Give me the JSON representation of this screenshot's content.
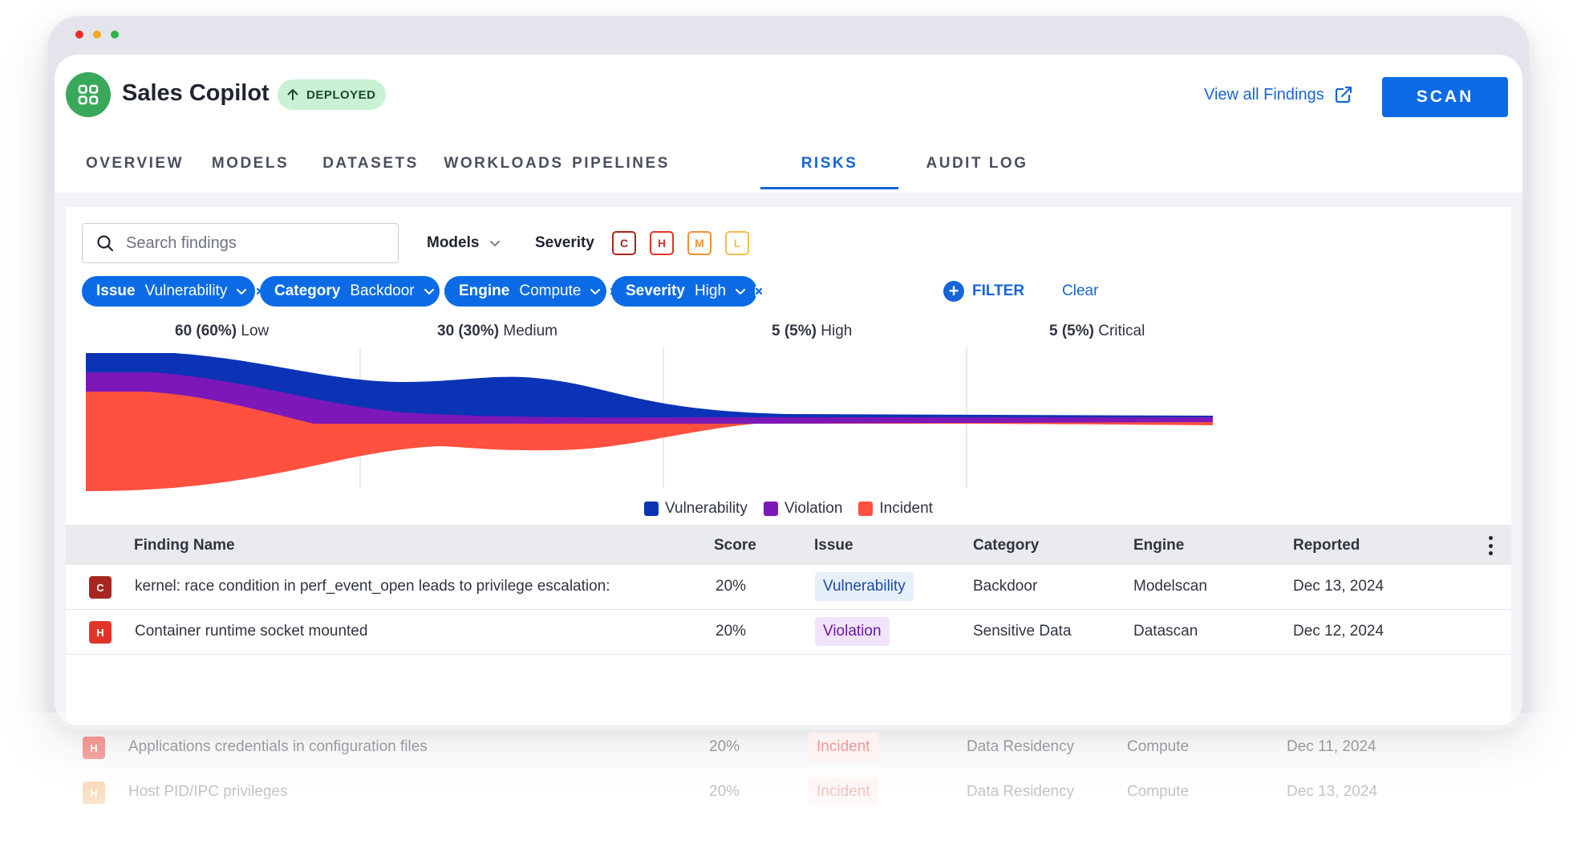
{
  "app": {
    "title": "Sales Copilot",
    "status_badge": "DEPLOYED",
    "view_all_findings": "View all Findings",
    "scan_button": "SCAN"
  },
  "tabs": [
    {
      "label": "OVERVIEW",
      "active": false
    },
    {
      "label": "MODELS",
      "active": false
    },
    {
      "label": "DATASETS",
      "active": false
    },
    {
      "label": "WORKLOADS",
      "active": false
    },
    {
      "label": "PIPELINES",
      "active": false
    },
    {
      "label": "RISKS",
      "active": true
    },
    {
      "label": "AUDIT LOG",
      "active": false
    }
  ],
  "filters": {
    "search_placeholder": "Search findings",
    "models_label": "Models",
    "severity_label": "Severity",
    "severity_levels": [
      {
        "letter": "C",
        "color": "#a8261e"
      },
      {
        "letter": "H",
        "color": "#e0342a"
      },
      {
        "letter": "M",
        "color": "#f29133"
      },
      {
        "letter": "L",
        "color": "#f2c04a"
      }
    ],
    "chips": [
      {
        "key": "Issue",
        "value": "Vulnerability"
      },
      {
        "key": "Category",
        "value": "Backdoor"
      },
      {
        "key": "Engine",
        "value": "Compute"
      },
      {
        "key": "Severity",
        "value": "High"
      }
    ],
    "filter_button": "FILTER",
    "clear_link": "Clear"
  },
  "chart_data": {
    "type": "area",
    "buckets": [
      {
        "count": "60 (60%)",
        "label": "Low"
      },
      {
        "count": "30 (30%)",
        "label": "Medium"
      },
      {
        "count": "5 (5%)",
        "label": "High"
      },
      {
        "count": "5 (5%)",
        "label": "Critical"
      }
    ],
    "legend": [
      "Vulnerability",
      "Violation",
      "Incident"
    ],
    "colors": {
      "Vulnerability": "#0b33b5",
      "Violation": "#7c17b8",
      "Incident": "#ff5040"
    }
  },
  "table": {
    "columns": [
      "Finding Name",
      "Score",
      "Issue",
      "Category",
      "Engine",
      "Reported"
    ],
    "rows": [
      {
        "severity": "C",
        "severity_color": "#a8261e",
        "name": "kernel: race condition in perf_event_open leads to privilege escalation:",
        "score": "20%",
        "issue": "Vulnerability",
        "issue_bg": "#e6f0fb",
        "issue_color": "#1c4aa8",
        "category": "Backdoor",
        "engine": "Modelscan",
        "reported": "Dec 13, 2024"
      },
      {
        "severity": "H",
        "severity_color": "#e0342a",
        "name": "Container runtime socket mounted",
        "score": "20%",
        "issue": "Violation",
        "issue_bg": "#f1e4fa",
        "issue_color": "#6a16a6",
        "category": "Sensitive Data",
        "engine": "Datascan",
        "reported": "Dec 12, 2024"
      },
      {
        "severity": "H",
        "severity_color": "#e0342a",
        "name": "Applications credentials in configuration files",
        "score": "20%",
        "issue": "Incident",
        "issue_bg": "#fde5e3",
        "issue_color": "#d8352a",
        "category": "Data Residency",
        "engine": "Compute",
        "reported": "Dec 11, 2024"
      },
      {
        "severity": "H",
        "severity_color": "#f29133",
        "name": "Host PID/IPC privileges",
        "score": "20%",
        "issue": "Incident",
        "issue_bg": "#fde5e3",
        "issue_color": "#d8352a",
        "category": "Data Residency",
        "engine": "Compute",
        "reported": "Dec 13, 2024"
      }
    ]
  }
}
